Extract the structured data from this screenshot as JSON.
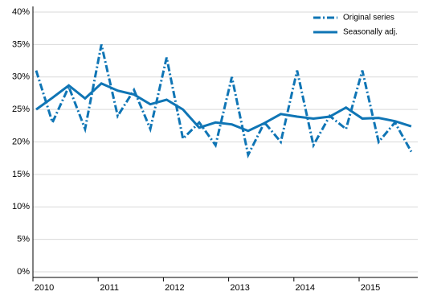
{
  "chart_data": {
    "type": "line",
    "categories": [
      "2010",
      null,
      null,
      null,
      "2011",
      null,
      null,
      null,
      "2012",
      null,
      null,
      null,
      "2013",
      null,
      null,
      null,
      "2014",
      null,
      null,
      null,
      "2015",
      null,
      null,
      null
    ],
    "series": [
      {
        "name": "Original series",
        "color": "#0f75b5",
        "style": "dashdot",
        "values": [
          31,
          23,
          28.5,
          22,
          35,
          24,
          28,
          22,
          33,
          20.5,
          23,
          19.5,
          30,
          18,
          23,
          20,
          31,
          19.5,
          24,
          22,
          31,
          20,
          23,
          18.5
        ]
      },
      {
        "name": "Seasonally adj.",
        "color": "#0f75b5",
        "style": "solid",
        "values": [
          25,
          26.8,
          28.7,
          26.7,
          29,
          27.9,
          27.3,
          25.8,
          26.5,
          25,
          22.2,
          23,
          22.7,
          21.7,
          22.9,
          24.3,
          23.9,
          23.6,
          23.9,
          25.3,
          23.6,
          23.7,
          23.2,
          22.4
        ]
      }
    ],
    "ylim": [
      0,
      40
    ],
    "yticks": [
      {
        "value": 0,
        "label": "0%"
      },
      {
        "value": 5,
        "label": "5%"
      },
      {
        "value": 10,
        "label": "10%"
      },
      {
        "value": 15,
        "label": "15%"
      },
      {
        "value": 20,
        "label": "20%"
      },
      {
        "value": 25,
        "label": "25%"
      },
      {
        "value": 30,
        "label": "30%"
      },
      {
        "value": 35,
        "label": "35%"
      },
      {
        "value": 40,
        "label": "40%"
      }
    ],
    "grid": true,
    "legend": "top-right"
  }
}
